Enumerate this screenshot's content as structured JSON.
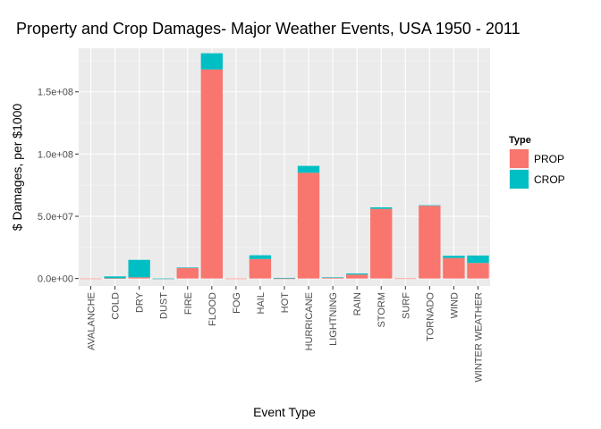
{
  "chart_data": {
    "type": "bar",
    "stacked": true,
    "title": "Property and Crop Damages- Major Weather Events, USA 1950 - 2011",
    "xlabel": "Event Type",
    "ylabel": "$ Damages, per $1000",
    "categories": [
      "AVALANCHE",
      "COLD",
      "DRY",
      "DUST",
      "FIRE",
      "FLOOD",
      "FOG",
      "HAIL",
      "HOT",
      "HURRICANE",
      "LIGHTNING",
      "RAIN",
      "STORM",
      "SURF",
      "TORNADO",
      "WIND",
      "WINTER WEATHER"
    ],
    "series": [
      {
        "name": "PROP",
        "color": "#F8766D",
        "values": [
          8000,
          200000,
          1000000,
          10000,
          8500000,
          168000000,
          20000,
          15700000,
          20000,
          85000000,
          900000,
          3200000,
          56000000,
          90000,
          58500000,
          16500000,
          12500000
        ]
      },
      {
        "name": "CROP",
        "color": "#00BFC4",
        "values": [
          0,
          1500000,
          14000000,
          3000,
          400000,
          13000000,
          0,
          3000000,
          500000,
          5500000,
          12000,
          900000,
          1200000,
          0,
          400000,
          1800000,
          6000000
        ]
      }
    ],
    "ylim": [
      -6000000,
      185000000
    ],
    "yticks": [
      0,
      50000000,
      100000000,
      150000000
    ],
    "ytick_labels": [
      "0.0e+00",
      "5.0e+07",
      "1.0e+08",
      "1.5e+08"
    ],
    "legend": {
      "title": "Type",
      "placement": "right"
    },
    "grid": true
  }
}
